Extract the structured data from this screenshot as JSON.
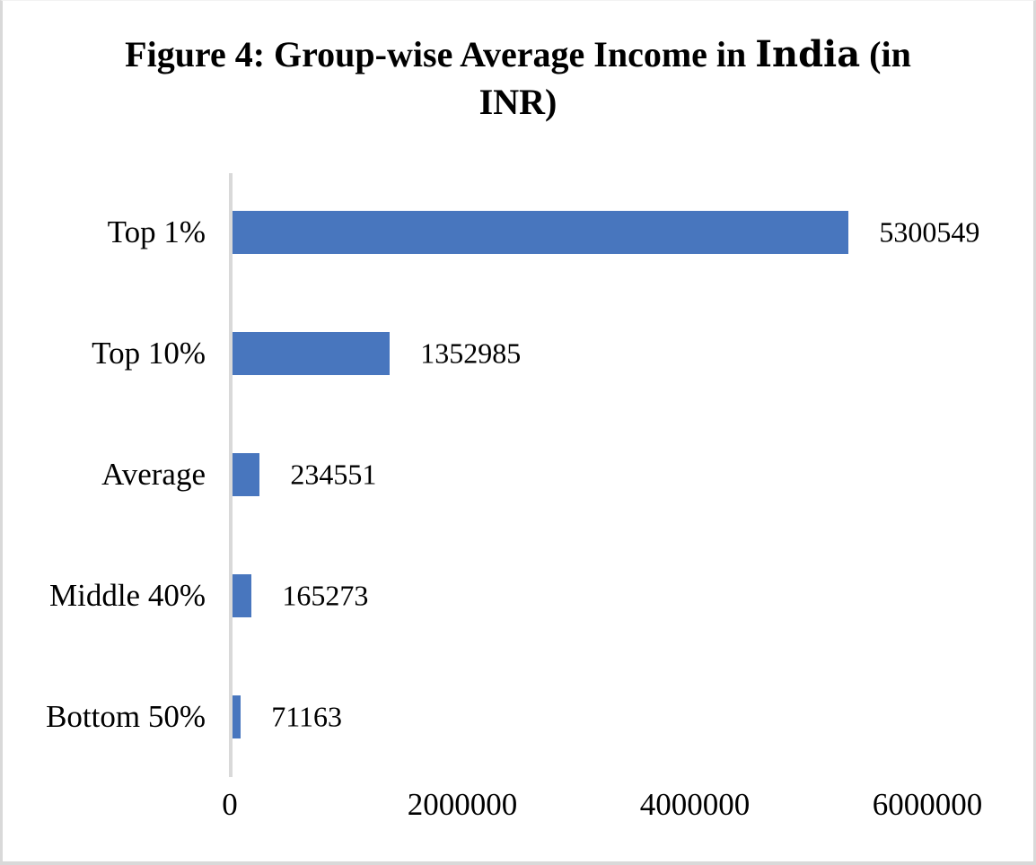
{
  "title": {
    "prefix": "Figure 4: Group-wise Average Income in ",
    "emphasis": "India",
    "suffix": " (in INR)"
  },
  "chart_data": {
    "type": "bar",
    "orientation": "horizontal",
    "title": "Figure 4: Group-wise Average Income in India (in INR)",
    "categories": [
      "Top 1%",
      "Top 10%",
      "Average",
      "Middle 40%",
      "Bottom 50%"
    ],
    "values": [
      5300549,
      1352985,
      234551,
      165273,
      71163
    ],
    "data_labels": [
      "5300549",
      "1352985",
      "234551",
      "165273",
      "71163"
    ],
    "x_ticks": [
      "0",
      "2000000",
      "4000000",
      "6000000"
    ],
    "x_tick_values": [
      0,
      2000000,
      4000000,
      6000000
    ],
    "xlim": [
      0,
      6000000
    ],
    "xlabel": "",
    "ylabel": "",
    "legend": "none",
    "grid": "off",
    "bar_color": "#4876be",
    "axis_line_color": "#d9d9d9",
    "text_color": "#000000"
  }
}
